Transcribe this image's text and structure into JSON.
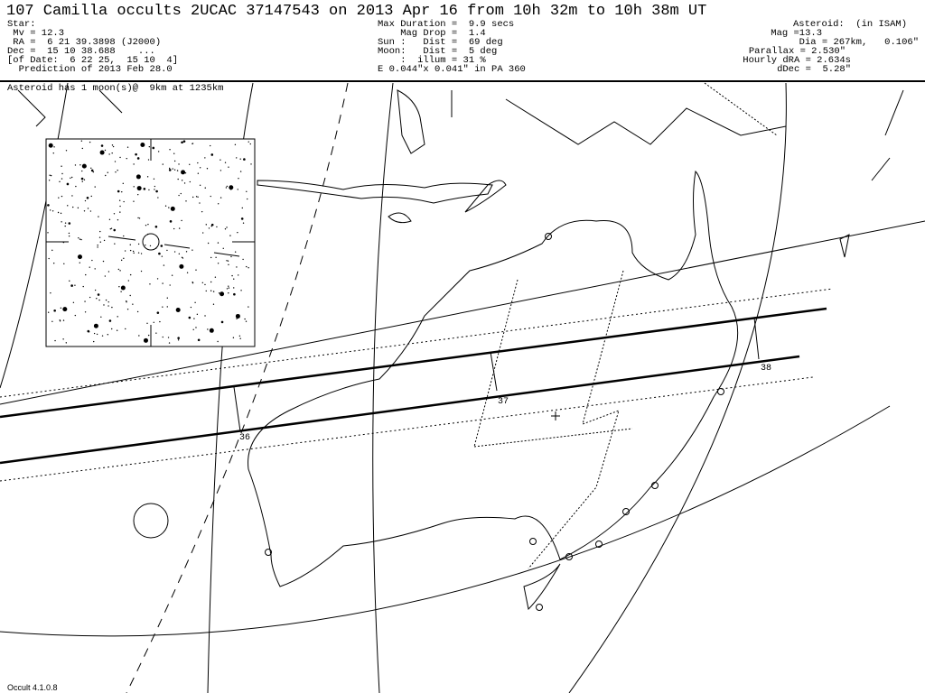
{
  "title": "107 Camilla occults 2UCAC 37147543 on 2013 Apr 16 from 10h 32m to 10h 38m UT",
  "star": {
    "heading": "Star:",
    "mv": " Mv = 12.3",
    "ra": " RA =  6 21 39.3898 (J2000)",
    "dec": "Dec =  15 10 38.688    ...",
    "of_date": "[of Date:  6 22 25,  15 10  4]",
    "prediction": "  Prediction of 2013 Feb 28.0"
  },
  "event": {
    "max_duration": "Max Duration =  9.9 secs",
    "mag_drop": "    Mag Drop =  1.4",
    "sun": "Sun :   Dist =  69 deg",
    "moon": "Moon:   Dist =  5 deg",
    "illum": "    :  illum = 31 %",
    "ellipse": "E 0.044\"x 0.041\" in PA 360"
  },
  "asteroid": {
    "heading": "Asteroid:  (in ISAM)",
    "mag": "Mag =13.3",
    "dia": "Dia = 267km,   0.106\"",
    "parallax": "Parallax = 2.530\"",
    "hourly_dra": "Hourly dRA = 2.634s",
    "ddec": "dDec =  5.28\""
  },
  "moon_note": "Asteroid has 1 moon(s)@  9km at 1235km",
  "time_ticks": [
    "36",
    "37",
    "38"
  ],
  "footer": "Occult 4.1.0.8"
}
